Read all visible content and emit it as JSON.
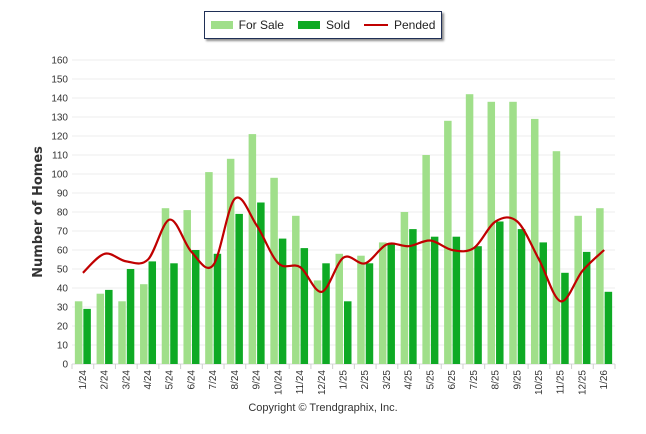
{
  "chart_data": {
    "type": "bar",
    "title": "",
    "xlabel": "",
    "ylabel": "Number of Homes",
    "ylim": [
      0,
      160
    ],
    "yticks": [
      0,
      10,
      20,
      30,
      40,
      50,
      60,
      70,
      80,
      90,
      100,
      110,
      120,
      130,
      140,
      150,
      160
    ],
    "grid": true,
    "legend_position": "top-center",
    "categories": [
      "1/24",
      "2/24",
      "3/24",
      "4/24",
      "5/24",
      "6/24",
      "7/24",
      "8/24",
      "9/24",
      "10/24",
      "11/24",
      "12/24",
      "1/25",
      "2/25",
      "3/25",
      "4/25",
      "5/25",
      "6/25",
      "7/25",
      "8/25",
      "9/25",
      "10/25",
      "11/25",
      "12/25",
      "1/26"
    ],
    "series": [
      {
        "name": "For Sale",
        "kind": "bar",
        "color": "#a0df8a",
        "values": [
          33,
          37,
          33,
          42,
          82,
          81,
          101,
          108,
          121,
          98,
          78,
          44,
          58,
          57,
          64,
          80,
          110,
          128,
          142,
          138,
          138,
          129,
          112,
          78,
          82
        ]
      },
      {
        "name": "Sold",
        "kind": "bar",
        "color": "#0eaa24",
        "values": [
          29,
          39,
          50,
          54,
          53,
          60,
          58,
          79,
          85,
          66,
          61,
          53,
          33,
          53,
          63,
          71,
          67,
          67,
          62,
          75,
          71,
          64,
          48,
          59,
          38
        ]
      },
      {
        "name": "Pended",
        "kind": "line",
        "color": "#c00000",
        "values": [
          48,
          58,
          54,
          55,
          76,
          59,
          52,
          87,
          73,
          53,
          51,
          38,
          56,
          53,
          63,
          62,
          65,
          60,
          61,
          75,
          75,
          55,
          33,
          49,
          60
        ]
      }
    ]
  },
  "legend": {
    "items": [
      {
        "label": "For Sale",
        "color": "#a0df8a"
      },
      {
        "label": "Sold",
        "color": "#0eaa24"
      },
      {
        "label": "Pended",
        "color": "#c00000"
      }
    ]
  },
  "footer": {
    "copyright": "Copyright © Trendgraphix, Inc."
  }
}
